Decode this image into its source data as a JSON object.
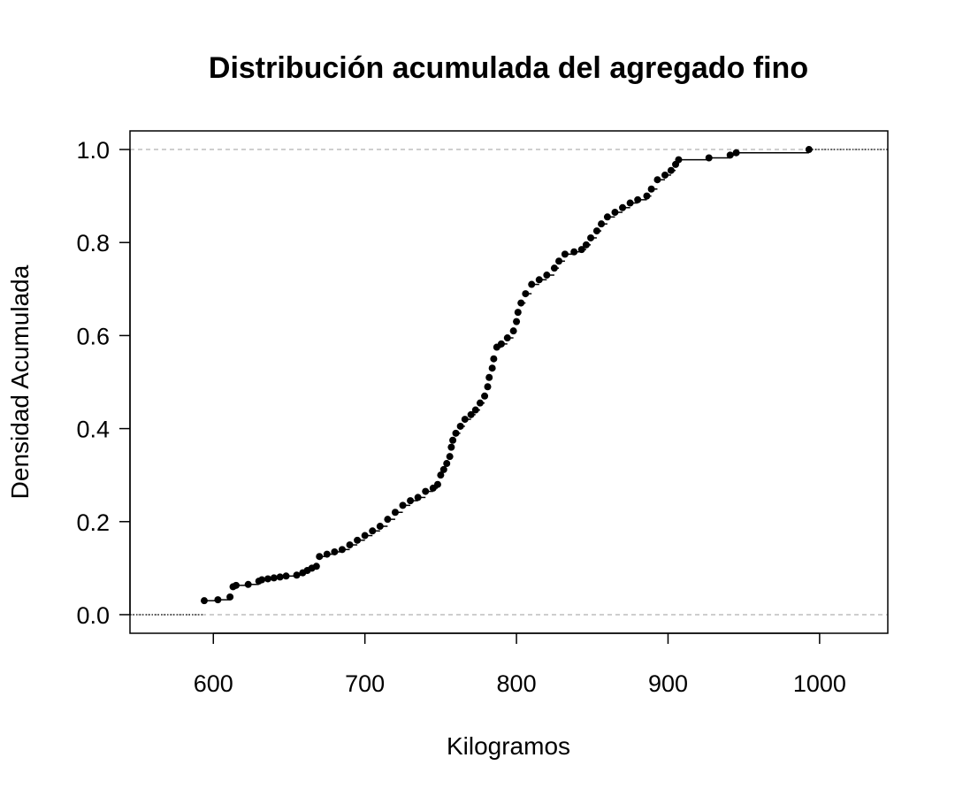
{
  "chart_data": {
    "type": "line",
    "subtype": "empirical-cdf-step",
    "title": "Distribución acumulada del agregado fino",
    "xlabel": "Kilogramos",
    "ylabel": "Densidad Acumulada",
    "xlim": [
      545,
      1045
    ],
    "ylim": [
      -0.04,
      1.04
    ],
    "x_ticks": [
      600,
      700,
      800,
      900,
      1000
    ],
    "x_tick_labels": [
      "600",
      "700",
      "800",
      "900",
      "1000"
    ],
    "y_ticks": [
      0.0,
      0.2,
      0.4,
      0.6,
      0.8,
      1.0
    ],
    "y_tick_labels": [
      "0.0",
      "0.2",
      "0.4",
      "0.6",
      "0.8",
      "1.0"
    ],
    "reference_lines": [
      0,
      1
    ],
    "grid": false,
    "legend": "none",
    "colors": {
      "points": "#000000",
      "reference": "#bebebe",
      "frame": "#000000"
    },
    "series": [
      {
        "points": [
          [
            594,
            0.03
          ],
          [
            603,
            0.032
          ],
          [
            611,
            0.038
          ],
          [
            613,
            0.06
          ],
          [
            615,
            0.063
          ],
          [
            623,
            0.065
          ],
          [
            630,
            0.072
          ],
          [
            632,
            0.075
          ],
          [
            636,
            0.077
          ],
          [
            640,
            0.079
          ],
          [
            644,
            0.081
          ],
          [
            648,
            0.083
          ],
          [
            655,
            0.085
          ],
          [
            659,
            0.09
          ],
          [
            662,
            0.095
          ],
          [
            665,
            0.1
          ],
          [
            668,
            0.104
          ],
          [
            670,
            0.125
          ],
          [
            675,
            0.13
          ],
          [
            680,
            0.135
          ],
          [
            685,
            0.14
          ],
          [
            690,
            0.15
          ],
          [
            695,
            0.16
          ],
          [
            700,
            0.17
          ],
          [
            705,
            0.18
          ],
          [
            710,
            0.19
          ],
          [
            715,
            0.205
          ],
          [
            720,
            0.22
          ],
          [
            725,
            0.235
          ],
          [
            730,
            0.245
          ],
          [
            735,
            0.252
          ],
          [
            740,
            0.265
          ],
          [
            745,
            0.272
          ],
          [
            748,
            0.28
          ],
          [
            750,
            0.3
          ],
          [
            752,
            0.312
          ],
          [
            754,
            0.325
          ],
          [
            756,
            0.34
          ],
          [
            757,
            0.36
          ],
          [
            758,
            0.375
          ],
          [
            760,
            0.39
          ],
          [
            763,
            0.405
          ],
          [
            766,
            0.42
          ],
          [
            770,
            0.43
          ],
          [
            773,
            0.44
          ],
          [
            776,
            0.455
          ],
          [
            779,
            0.47
          ],
          [
            781,
            0.49
          ],
          [
            782,
            0.51
          ],
          [
            784,
            0.53
          ],
          [
            785,
            0.55
          ],
          [
            787,
            0.575
          ],
          [
            790,
            0.582
          ],
          [
            794,
            0.595
          ],
          [
            798,
            0.61
          ],
          [
            800,
            0.63
          ],
          [
            801,
            0.65
          ],
          [
            803,
            0.67
          ],
          [
            806,
            0.69
          ],
          [
            810,
            0.71
          ],
          [
            815,
            0.72
          ],
          [
            820,
            0.73
          ],
          [
            825,
            0.745
          ],
          [
            828,
            0.76
          ],
          [
            832,
            0.775
          ],
          [
            838,
            0.78
          ],
          [
            843,
            0.785
          ],
          [
            846,
            0.795
          ],
          [
            849,
            0.81
          ],
          [
            853,
            0.825
          ],
          [
            856,
            0.84
          ],
          [
            860,
            0.855
          ],
          [
            865,
            0.865
          ],
          [
            870,
            0.875
          ],
          [
            875,
            0.885
          ],
          [
            880,
            0.892
          ],
          [
            886,
            0.9
          ],
          [
            889,
            0.915
          ],
          [
            893,
            0.935
          ],
          [
            898,
            0.945
          ],
          [
            902,
            0.955
          ],
          [
            905,
            0.968
          ],
          [
            907,
            0.978
          ],
          [
            927,
            0.982
          ],
          [
            941,
            0.988
          ],
          [
            945,
            0.993
          ],
          [
            993,
            1.0
          ]
        ]
      }
    ]
  }
}
